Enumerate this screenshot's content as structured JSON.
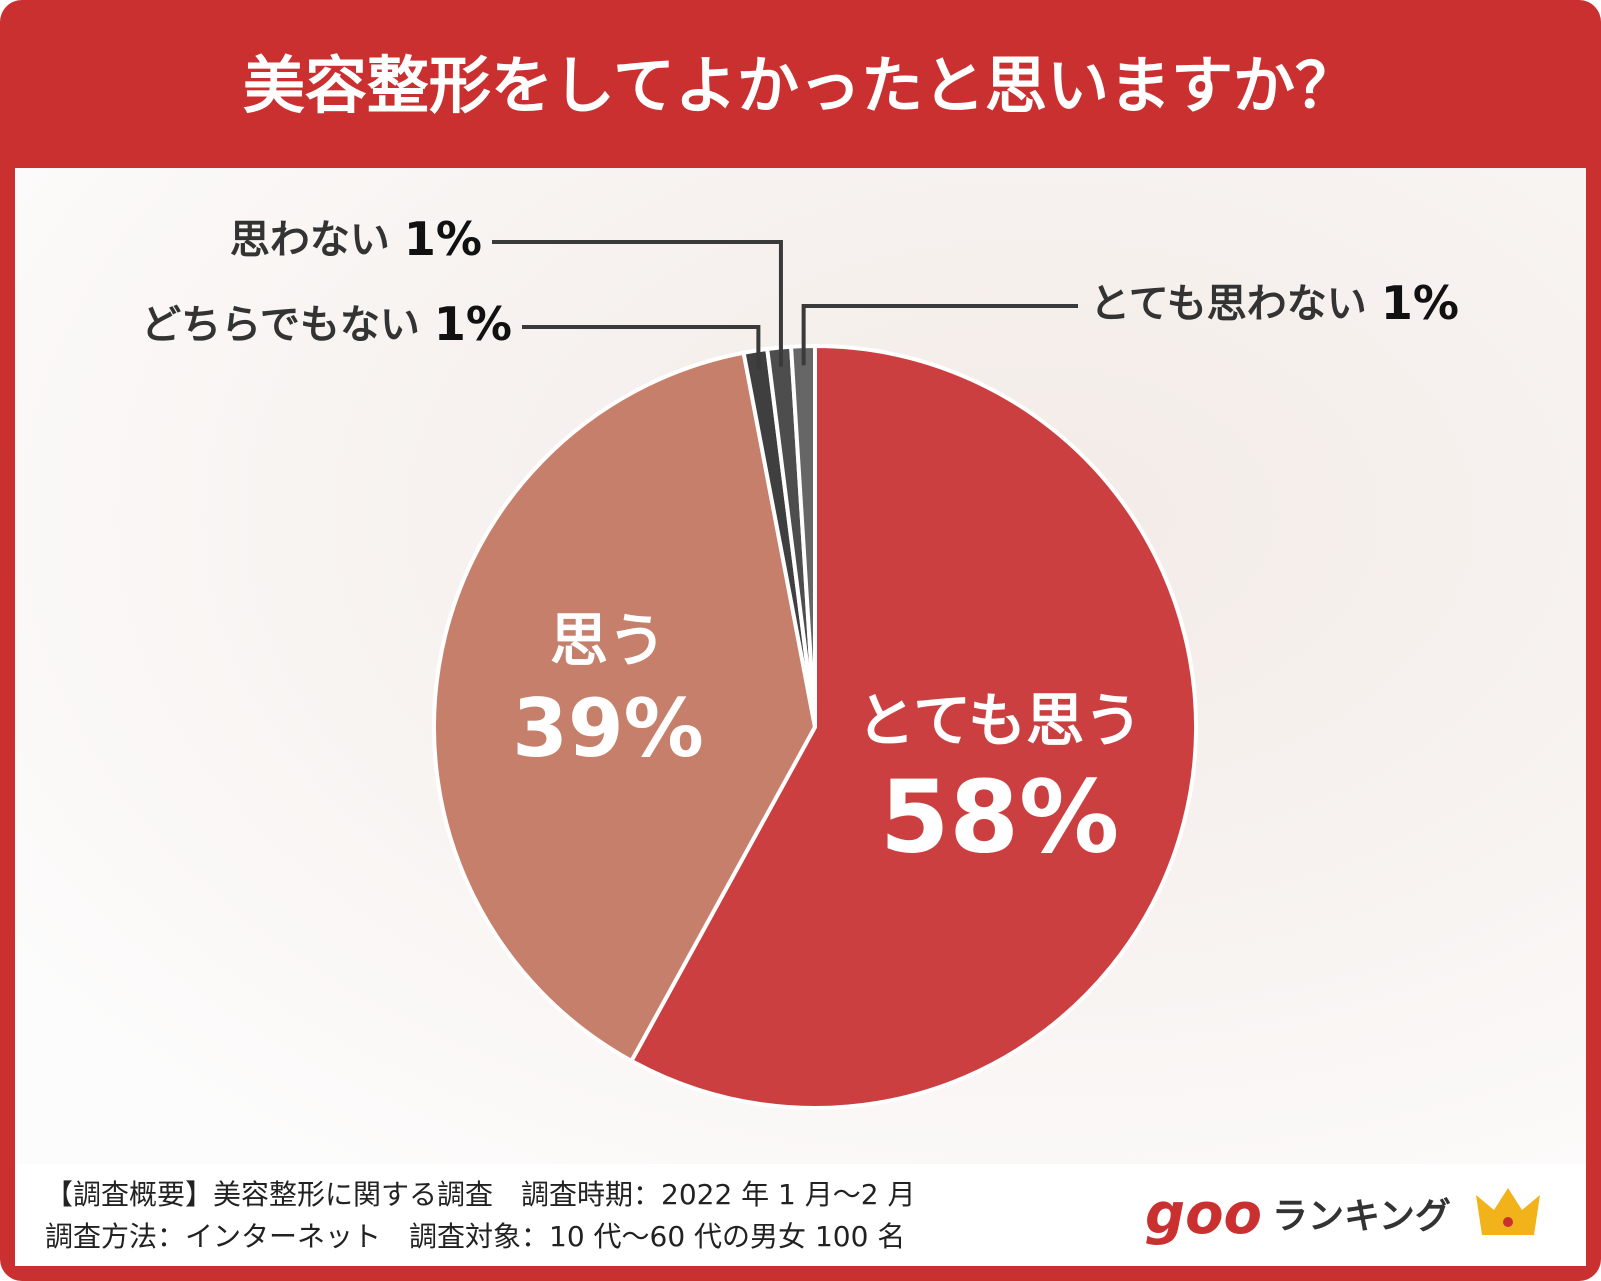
{
  "chart_data": {
    "type": "pie",
    "title": "美容整形をしてよかったと思いますか？",
    "categories": [
      "とても思う",
      "思う",
      "どちらでもない",
      "思わない",
      "とても思わない"
    ],
    "values": [
      58,
      39,
      1,
      1,
      1
    ],
    "value_labels": [
      "58%",
      "39%",
      "1%",
      "1%",
      "1%"
    ],
    "colors": [
      "#cc3f41",
      "#c67f6a",
      "#3f3f3f",
      "#4d4d4d",
      "#666666"
    ],
    "footer": [
      "【調査概要】美容整形に関する調査　調査時期：2022 年 1 月〜2 月",
      "調査方法：インターネット　調査対象：10 代〜60 代の男女 100 名"
    ],
    "logo": {
      "brand": "goo",
      "text": "ランキング"
    }
  }
}
